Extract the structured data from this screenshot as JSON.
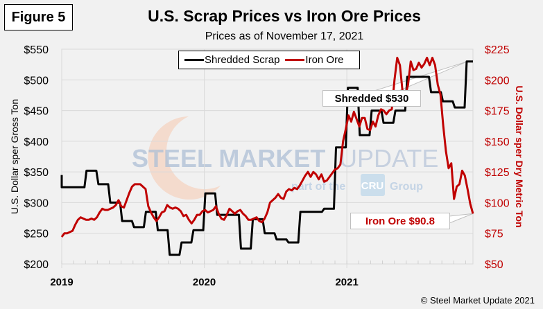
{
  "figure_label": "Figure 5",
  "copyright": "© Steel Market Update 2021",
  "watermark": {
    "brand_bold": "STEEL MARKET",
    "brand_light": "UPDATE",
    "tagline_pre": "part of the",
    "tagline_badge": "CRU",
    "tagline_post": "Group"
  },
  "colors": {
    "scrap": "#000000",
    "ore": "#c00000",
    "grid": "#d9d9d9",
    "background": "#f1f1f1"
  },
  "chart_data": {
    "type": "line",
    "title": "U.S. Scrap Prices vs Iron Ore Prices",
    "subtitle": "Prices as of November 17, 2021",
    "xlabel": "",
    "ylabel": "U.S. Dollar sper Gross Ton",
    "y2label": "U.S. Dollar sper Dry Metric Ton",
    "x_tick_labels": [
      "2019",
      "2020",
      "2021"
    ],
    "x_range_weeks": [
      0,
      150
    ],
    "ylim": [
      200,
      550
    ],
    "y_ticks": [
      200,
      250,
      300,
      350,
      400,
      450,
      500,
      550
    ],
    "y_tick_labels": [
      "$200",
      "$250",
      "$300",
      "$350",
      "$400",
      "$450",
      "$500",
      "$550"
    ],
    "y2lim": [
      50,
      225
    ],
    "y2_ticks": [
      50,
      75,
      100,
      125,
      150,
      175,
      200,
      225
    ],
    "y2_tick_labels": [
      "$50",
      "$75",
      "$100",
      "$125",
      "$150",
      "$175",
      "$200",
      "$225"
    ],
    "grid": true,
    "legend": {
      "position": "top-center",
      "entries": [
        "Shredded Scrap",
        "Iron Ore"
      ]
    },
    "annotations": [
      {
        "text": "Shredded $530",
        "series": "Shredded Scrap",
        "value": 530
      },
      {
        "text": "Iron Ore $90.8",
        "series": "Iron Ore",
        "value": 90.8
      }
    ],
    "series": [
      {
        "name": "Shredded Scrap",
        "axis": "left",
        "unit": "$/gross ton",
        "frequency": "monthly",
        "months": [
          "2019-01",
          "2019-02",
          "2019-03",
          "2019-04",
          "2019-05",
          "2019-06",
          "2019-07",
          "2019-08",
          "2019-09",
          "2019-10",
          "2019-11",
          "2019-12",
          "2020-01",
          "2020-02",
          "2020-03",
          "2020-04",
          "2020-05",
          "2020-06",
          "2020-07",
          "2020-08",
          "2020-09",
          "2020-10",
          "2020-11",
          "2020-12",
          "2021-01",
          "2021-02",
          "2021-03",
          "2021-04",
          "2021-05",
          "2021-06",
          "2021-07",
          "2021-08",
          "2021-09",
          "2021-10",
          "2021-11"
        ],
        "values": [
          325,
          325,
          352,
          330,
          300,
          270,
          260,
          285,
          255,
          215,
          235,
          255,
          315,
          280,
          280,
          225,
          273,
          250,
          240,
          235,
          285,
          285,
          290,
          390,
          487,
          410,
          450,
          430,
          450,
          505,
          505,
          480,
          465,
          455,
          530
        ]
      },
      {
        "name": "Iron Ore",
        "axis": "right",
        "unit": "$/dry metric ton",
        "frequency": "weekly",
        "values": [
          72,
          75,
          75,
          76,
          77,
          82,
          86,
          88,
          87,
          86,
          86,
          87,
          86,
          88,
          92,
          95,
          94,
          94,
          95,
          96,
          98,
          102,
          97,
          96,
          102,
          108,
          113,
          115,
          115,
          115,
          113,
          111,
          97,
          92,
          88,
          85,
          88,
          92,
          93,
          98,
          96,
          95,
          96,
          95,
          93,
          89,
          90,
          86,
          83,
          86,
          90,
          90,
          93,
          94,
          92,
          93,
          94,
          97,
          91,
          87,
          86,
          90,
          95,
          93,
          91,
          93,
          94,
          91,
          89,
          86,
          86,
          87,
          88,
          85,
          84,
          87,
          92,
          100,
          102,
          104,
          107,
          104,
          103,
          109,
          111,
          110,
          112,
          111,
          114,
          118,
          122,
          125,
          121,
          125,
          123,
          119,
          123,
          117,
          118,
          121,
          124,
          127,
          128,
          131,
          150,
          160,
          171,
          166,
          174,
          168,
          162,
          169,
          169,
          160,
          159,
          166,
          162,
          171,
          176,
          175,
          172,
          175,
          176,
          200,
          218,
          212,
          190,
          187,
          196,
          215,
          208,
          209,
          214,
          210,
          213,
          218,
          212,
          218,
          212,
          196,
          188,
          163,
          142,
          128,
          132,
          103,
          113,
          115,
          126,
          122,
          111,
          99,
          91
        ]
      }
    ]
  }
}
